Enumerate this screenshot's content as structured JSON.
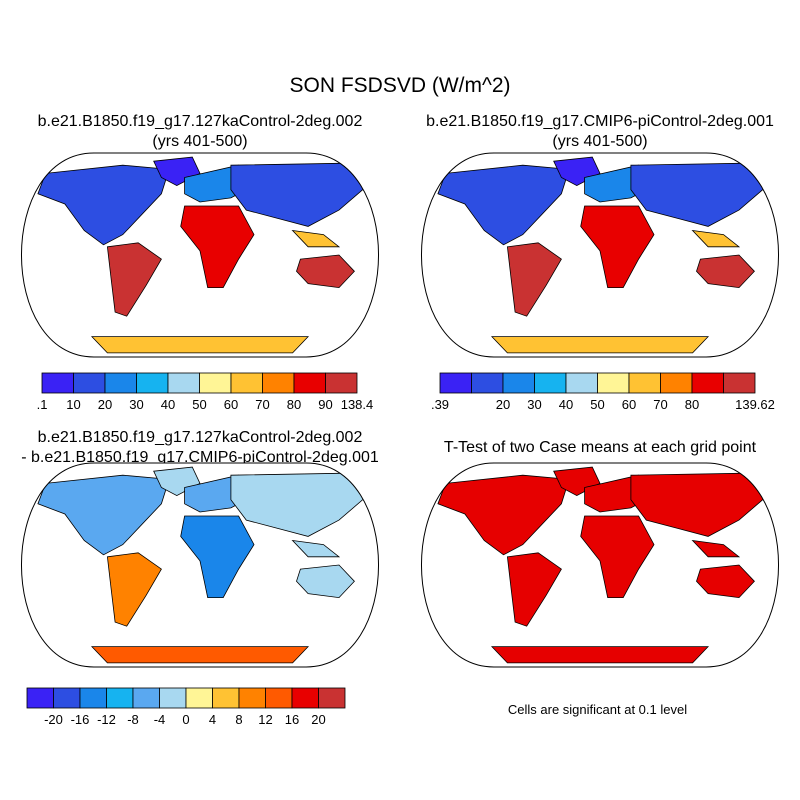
{
  "figure": {
    "title": "SON FSDSVD (W/m^2)"
  },
  "panels": {
    "case1": {
      "title_line1": "b.e21.B1850.f19_g17.127kaControl-2deg.002",
      "title_line2": "(yrs 401-500)"
    },
    "case2": {
      "title_line1": "b.e21.B1850.f19_g17.CMIP6-piControl-2deg.001",
      "title_line2": "(yrs 401-500)"
    },
    "diff": {
      "title_line1": "b.e21.B1850.f19_g17.127kaControl-2deg.002",
      "title_line2": "- b.e21.B1850.f19_g17.CMIP6-piControl-2deg.001"
    },
    "ttest": {
      "title_line1": "T-Test of two Case means at each grid point",
      "note": "Cells are significant at 0.1 level",
      "significant_color": "#e60000"
    }
  },
  "colorbars": {
    "case1": {
      "colors": [
        "#3a22f5",
        "#2d4ee2",
        "#1a86ea",
        "#16b3f0",
        "#a8d8f0",
        "#fff596",
        "#ffc233",
        "#ff8200",
        "#e80000",
        "#c93232"
      ],
      "labels": [
        ".1",
        "10",
        "20",
        "30",
        "40",
        "50",
        "60",
        "70",
        "80",
        "90",
        "138.4"
      ]
    },
    "case2": {
      "colors": [
        "#3a22f5",
        "#2d4ee2",
        "#1a86ea",
        "#16b3f0",
        "#a8d8f0",
        "#fff596",
        "#ffc233",
        "#ff8200",
        "#e80000",
        "#c93232"
      ],
      "labels": [
        ".39",
        "",
        "20",
        "30",
        "40",
        "50",
        "60",
        "70",
        "80",
        "",
        "139.62"
      ]
    },
    "diff": {
      "colors": [
        "#3a22f5",
        "#2d4ee2",
        "#1a86ea",
        "#16b3f0",
        "#5aa8f0",
        "#a8d8f0",
        "#fff596",
        "#ffc233",
        "#ff8200",
        "#ff5a00",
        "#e80000",
        "#c93232"
      ],
      "labels": [
        "",
        "-20",
        "-16",
        "-12",
        "-8",
        "-4",
        "0",
        "4",
        "8",
        "12",
        "16",
        "20",
        ""
      ]
    }
  }
}
